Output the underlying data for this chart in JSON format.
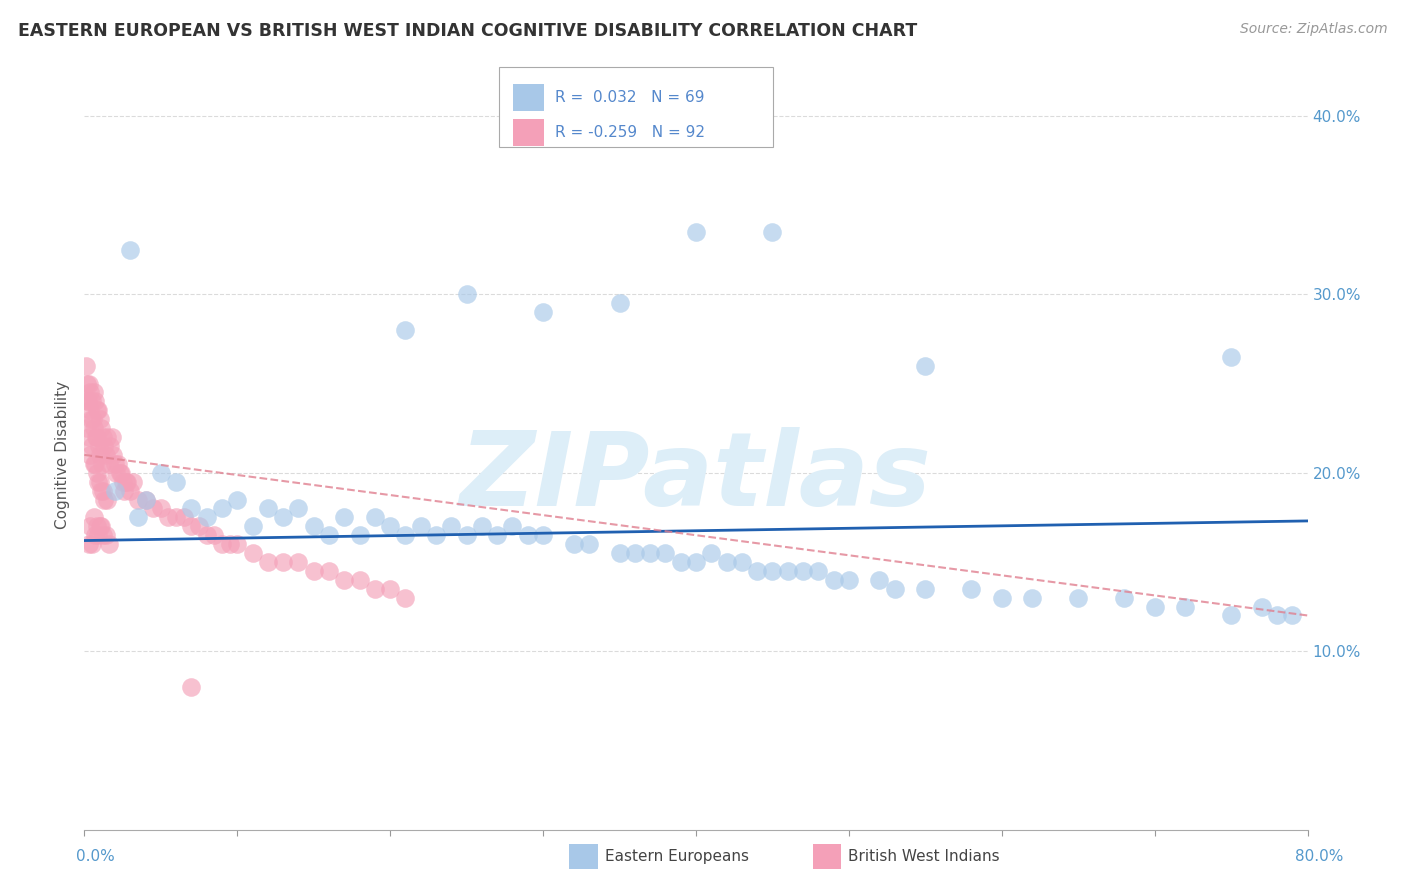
{
  "title": "EASTERN EUROPEAN VS BRITISH WEST INDIAN COGNITIVE DISABILITY CORRELATION CHART",
  "source": "Source: ZipAtlas.com",
  "ylabel": "Cognitive Disability",
  "xlim": [
    0.0,
    80.0
  ],
  "ylim": [
    0.0,
    42.0
  ],
  "yticks": [
    10.0,
    20.0,
    30.0,
    40.0
  ],
  "xticks": [
    0.0,
    10.0,
    20.0,
    30.0,
    40.0,
    50.0,
    60.0,
    70.0,
    80.0
  ],
  "blue_R": 0.032,
  "blue_N": 69,
  "pink_R": -0.259,
  "pink_N": 92,
  "blue_color": "#a8c8e8",
  "pink_color": "#f4a0b8",
  "blue_line_color": "#2060b0",
  "pink_line_color": "#e08090",
  "background_color": "#ffffff",
  "grid_color": "#cccccc",
  "watermark_color": "#ddeef8",
  "watermark_text": "ZIPatlas",
  "blue_line_y0": 16.2,
  "blue_line_y1": 17.3,
  "pink_line_y0": 21.0,
  "pink_line_y1": 12.0,
  "blue_x": [
    2.0,
    3.5,
    4.0,
    5.0,
    6.0,
    7.0,
    8.0,
    9.0,
    10.0,
    11.0,
    12.0,
    13.0,
    14.0,
    15.0,
    16.0,
    17.0,
    18.0,
    19.0,
    20.0,
    21.0,
    22.0,
    23.0,
    24.0,
    25.0,
    26.0,
    27.0,
    28.0,
    29.0,
    30.0,
    32.0,
    33.0,
    35.0,
    36.0,
    37.0,
    38.0,
    39.0,
    40.0,
    41.0,
    42.0,
    43.0,
    44.0,
    45.0,
    46.0,
    47.0,
    48.0,
    49.0,
    50.0,
    52.0,
    53.0,
    55.0,
    58.0,
    60.0,
    62.0,
    65.0,
    68.0,
    70.0,
    72.0,
    75.0,
    77.0,
    78.0,
    79.0,
    21.0,
    25.0,
    30.0,
    35.0,
    40.0,
    45.0,
    55.0,
    75.0,
    3.0
  ],
  "blue_y": [
    19.0,
    17.5,
    18.5,
    20.0,
    19.5,
    18.0,
    17.5,
    18.0,
    18.5,
    17.0,
    18.0,
    17.5,
    18.0,
    17.0,
    16.5,
    17.5,
    16.5,
    17.5,
    17.0,
    16.5,
    17.0,
    16.5,
    17.0,
    16.5,
    17.0,
    16.5,
    17.0,
    16.5,
    16.5,
    16.0,
    16.0,
    15.5,
    15.5,
    15.5,
    15.5,
    15.0,
    15.0,
    15.5,
    15.0,
    15.0,
    14.5,
    14.5,
    14.5,
    14.5,
    14.5,
    14.0,
    14.0,
    14.0,
    13.5,
    13.5,
    13.5,
    13.0,
    13.0,
    13.0,
    13.0,
    12.5,
    12.5,
    12.0,
    12.5,
    12.0,
    12.0,
    28.0,
    30.0,
    29.0,
    29.5,
    33.5,
    33.5,
    26.0,
    26.5,
    32.5
  ],
  "pink_x": [
    0.1,
    0.15,
    0.2,
    0.2,
    0.25,
    0.3,
    0.3,
    0.35,
    0.4,
    0.4,
    0.45,
    0.5,
    0.5,
    0.55,
    0.6,
    0.6,
    0.65,
    0.7,
    0.7,
    0.75,
    0.8,
    0.8,
    0.85,
    0.9,
    0.9,
    0.95,
    1.0,
    1.0,
    1.05,
    1.1,
    1.1,
    1.15,
    1.2,
    1.2,
    1.3,
    1.3,
    1.4,
    1.5,
    1.5,
    1.6,
    1.7,
    1.8,
    1.9,
    2.0,
    2.1,
    2.2,
    2.3,
    2.4,
    2.5,
    2.6,
    2.7,
    2.8,
    3.0,
    3.2,
    3.5,
    4.0,
    4.5,
    5.0,
    5.5,
    6.0,
    6.5,
    7.0,
    7.5,
    8.0,
    8.5,
    9.0,
    9.5,
    10.0,
    11.0,
    12.0,
    13.0,
    14.0,
    15.0,
    16.0,
    17.0,
    18.0,
    19.0,
    20.0,
    21.0,
    0.3,
    0.5,
    0.7,
    0.9,
    1.0,
    1.2,
    1.4,
    1.6,
    0.4,
    0.6,
    0.8,
    1.1,
    7.0
  ],
  "pink_y": [
    26.0,
    24.0,
    25.0,
    22.5,
    24.0,
    25.0,
    22.0,
    23.5,
    24.5,
    21.0,
    23.0,
    24.0,
    21.5,
    23.0,
    24.5,
    20.5,
    22.5,
    24.0,
    20.5,
    22.0,
    23.5,
    20.0,
    22.0,
    23.5,
    19.5,
    21.5,
    23.0,
    19.5,
    21.0,
    22.5,
    19.0,
    20.5,
    22.0,
    19.0,
    21.5,
    18.5,
    21.0,
    22.0,
    18.5,
    20.5,
    21.5,
    22.0,
    21.0,
    20.5,
    20.0,
    20.5,
    20.0,
    20.0,
    19.5,
    19.0,
    19.5,
    19.5,
    19.0,
    19.5,
    18.5,
    18.5,
    18.0,
    18.0,
    17.5,
    17.5,
    17.5,
    17.0,
    17.0,
    16.5,
    16.5,
    16.0,
    16.0,
    16.0,
    15.5,
    15.0,
    15.0,
    15.0,
    14.5,
    14.5,
    14.0,
    14.0,
    13.5,
    13.5,
    13.0,
    16.0,
    16.0,
    16.5,
    16.5,
    17.0,
    16.5,
    16.5,
    16.0,
    17.0,
    17.5,
    17.0,
    17.0,
    8.0
  ]
}
